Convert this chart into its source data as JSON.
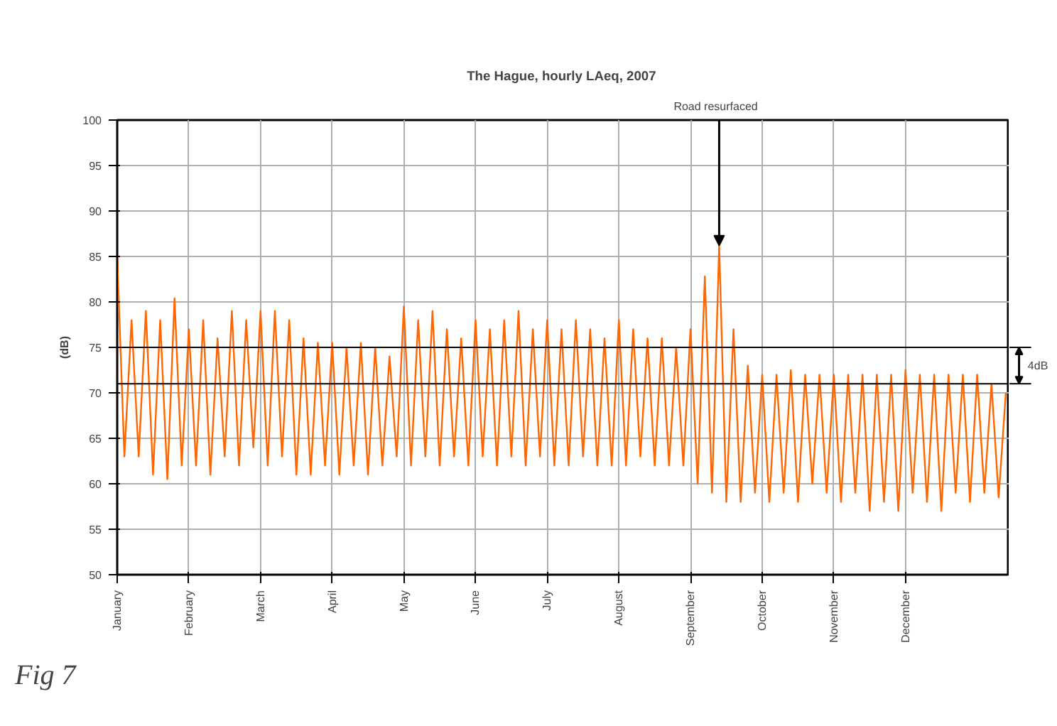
{
  "chart_data": {
    "type": "line",
    "title": "The Hague, hourly LAeq,  2007",
    "ylabel": "(dB)",
    "categories": [
      "January",
      null,
      null,
      null,
      null,
      null,
      null,
      null,
      null,
      null,
      "February",
      null,
      null,
      null,
      null,
      null,
      null,
      null,
      null,
      null,
      "March",
      null,
      null,
      null,
      null,
      null,
      null,
      null,
      null,
      null,
      "April",
      null,
      null,
      null,
      null,
      null,
      null,
      null,
      null,
      null,
      "May",
      null,
      null,
      null,
      null,
      null,
      null,
      null,
      null,
      null,
      "June",
      null,
      null,
      null,
      null,
      null,
      null,
      null,
      null,
      null,
      "July",
      null,
      null,
      null,
      null,
      null,
      null,
      null,
      null,
      null,
      "August",
      null,
      null,
      null,
      null,
      null,
      null,
      null,
      null,
      null,
      "September",
      null,
      null,
      null,
      null,
      null,
      null,
      null,
      null,
      null,
      "October",
      null,
      null,
      null,
      null,
      null,
      null,
      null,
      null,
      null,
      "November",
      null,
      null,
      null,
      null,
      null,
      null,
      null,
      null,
      null,
      "December",
      null,
      null,
      null,
      null,
      null,
      null,
      null,
      null,
      null,
      null,
      null,
      null,
      null,
      null
    ],
    "series": [
      {
        "color": "#ff6600",
        "values": [
          85,
          63,
          78,
          63,
          79,
          61,
          78,
          60.5,
          80.4,
          62,
          77,
          62,
          78,
          61,
          76,
          63,
          79,
          62,
          78,
          64,
          79,
          62,
          79,
          63,
          78,
          61,
          76,
          61,
          75.5,
          62,
          75.5,
          61,
          75,
          62,
          75.5,
          61,
          75,
          62,
          74,
          63,
          79.5,
          62,
          78,
          63,
          79,
          62,
          77,
          63,
          76,
          62,
          78,
          63,
          77,
          62,
          78,
          63,
          79,
          62,
          77,
          63,
          78,
          62,
          77,
          62,
          78,
          63,
          77,
          62,
          76,
          62,
          78,
          62,
          77,
          63,
          76,
          62,
          76,
          62,
          75,
          62,
          77,
          60,
          82.8,
          59,
          86.2,
          58,
          77,
          58,
          73,
          59,
          72,
          58,
          72,
          59,
          72.5,
          58,
          72,
          60,
          72,
          59,
          72,
          58,
          72,
          59,
          72,
          57,
          72,
          58,
          72,
          57,
          72.5,
          59,
          72,
          58,
          72,
          57,
          72,
          59,
          72,
          58,
          72,
          59,
          71,
          58.5,
          70
        ]
      }
    ],
    "ylim": [
      50,
      100
    ],
    "yticks": [
      50,
      55,
      60,
      65,
      70,
      75,
      80,
      85,
      90,
      95,
      100
    ],
    "grid": true,
    "marker": "none",
    "line_style": "solid",
    "ref_lines": [
      {
        "axis": "y",
        "value": 75,
        "label": null,
        "color": "#000000"
      },
      {
        "axis": "y",
        "value": 71,
        "label": null,
        "color": "#000000"
      }
    ],
    "annotations": [
      {
        "text": "Road resurfaced",
        "y": 86.2
      },
      "4dB",
      "Fig 7"
    ]
  }
}
